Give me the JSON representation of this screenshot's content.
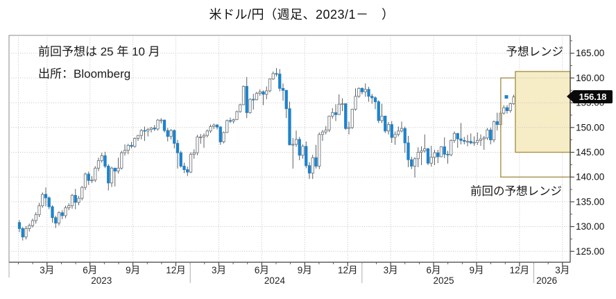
{
  "title": "米ドル/円（週足、2023/1－　）",
  "annotations": {
    "note_line1": "前回予想は 25 年 10 月",
    "note_line2": "出所：Bloomberg",
    "current_range_label": "予想レンジ",
    "previous_range_label": "前回の予想レンジ"
  },
  "last_price": "156.18",
  "colors": {
    "candle_down": "#1e82cb",
    "candle_up_fill": "#fdfdfd",
    "candle_up_stroke": "#73787d",
    "wick": "#4a4e52",
    "range_box_border": "#a8904c",
    "range_box_fill": "#f6ecc4",
    "gridline": "#c0c0c0",
    "axis": "#3f3f3f",
    "price_tag_bg": "#0a0a0a"
  },
  "chart_data": {
    "type": "candlestick",
    "title": "米ドル/円（週足、2023/1－　）",
    "frequency_label": "週足",
    "start_label": "2023/1",
    "last_close": 156.18,
    "y_axis": {
      "ylim": [
        122.8,
        168.6
      ],
      "major_ticks": [
        125,
        130,
        135,
        140,
        145,
        150,
        155,
        160,
        165
      ],
      "minor_step": 2.5,
      "tick_format": "0.00",
      "grid": true
    },
    "x_axis": {
      "month_ticks": [
        {
          "m": 2,
          "label": "3月"
        },
        {
          "m": 5,
          "label": "6月"
        },
        {
          "m": 8,
          "label": "9月"
        },
        {
          "m": 11,
          "label": "12月"
        },
        {
          "m": 14,
          "label": "3月"
        },
        {
          "m": 17,
          "label": "6月"
        },
        {
          "m": 20,
          "label": "9月"
        },
        {
          "m": 23,
          "label": "12月"
        },
        {
          "m": 26,
          "label": "3月"
        },
        {
          "m": 29,
          "label": "6月"
        },
        {
          "m": 32,
          "label": "9月"
        },
        {
          "m": 35,
          "label": "12月"
        },
        {
          "m": 38,
          "label": "3月"
        }
      ],
      "year_labels": [
        {
          "m": 5.8,
          "label": "2023"
        },
        {
          "m": 17.9,
          "label": "2024"
        },
        {
          "m": 29.7,
          "label": "2025"
        },
        {
          "m": 36.9,
          "label": "2026"
        }
      ],
      "year_dividers_m": [
        12,
        24,
        36
      ],
      "grid_months": [
        0,
        2,
        5,
        8,
        11,
        14,
        17,
        20,
        23,
        26,
        29,
        32,
        35,
        38
      ]
    },
    "forecast_ranges": [
      {
        "name": "previous",
        "label": "前回の予想レンジ",
        "price_low": 140.0,
        "price_high": 160.0,
        "start_m": 33.69,
        "filled": false
      },
      {
        "name": "current",
        "label": "予想レンジ",
        "price_low": 145.0,
        "price_high": 161.3,
        "start_m": 34.71,
        "filled": true
      }
    ],
    "weeks": [
      [
        130.8,
        131.3,
        128.9,
        129.6
      ],
      [
        129.6,
        129.9,
        127.2,
        127.9
      ],
      [
        127.9,
        130.1,
        127.4,
        129.6
      ],
      [
        129.6,
        130.6,
        129.0,
        130.2
      ],
      [
        130.2,
        131.6,
        129.8,
        131.2
      ],
      [
        131.2,
        132.9,
        130.6,
        132.4
      ],
      [
        132.4,
        134.8,
        131.9,
        134.2
      ],
      [
        134.2,
        136.9,
        133.8,
        136.5
      ],
      [
        136.5,
        137.9,
        134.1,
        135.8
      ],
      [
        135.8,
        136.1,
        133.5,
        134.0
      ],
      [
        134.0,
        134.3,
        130.8,
        131.8
      ],
      [
        131.8,
        132.2,
        129.7,
        130.7
      ],
      [
        130.7,
        133.1,
        130.2,
        132.8
      ],
      [
        132.8,
        133.3,
        131.5,
        132.2
      ],
      [
        132.2,
        134.2,
        131.7,
        133.8
      ],
      [
        133.8,
        134.7,
        133.3,
        134.2
      ],
      [
        134.2,
        136.6,
        133.6,
        136.3
      ],
      [
        136.3,
        137.6,
        133.5,
        134.9
      ],
      [
        134.9,
        136.2,
        134.3,
        135.7
      ],
      [
        135.7,
        138.2,
        135.3,
        137.9
      ],
      [
        137.9,
        140.9,
        137.4,
        140.6
      ],
      [
        140.6,
        141.1,
        138.4,
        139.3
      ],
      [
        139.3,
        140.2,
        138.8,
        139.4
      ],
      [
        139.4,
        142.2,
        139.0,
        141.8
      ],
      [
        141.8,
        143.9,
        141.2,
        143.3
      ],
      [
        143.3,
        144.9,
        142.9,
        144.3
      ],
      [
        144.3,
        145.1,
        141.8,
        142.2
      ],
      [
        142.2,
        142.6,
        137.3,
        138.8
      ],
      [
        138.8,
        142.1,
        138.0,
        141.8
      ],
      [
        141.8,
        141.9,
        138.1,
        141.2
      ],
      [
        141.2,
        143.9,
        140.7,
        141.8
      ],
      [
        141.8,
        145.3,
        141.5,
        144.9
      ],
      [
        144.9,
        146.6,
        144.3,
        145.4
      ],
      [
        145.4,
        146.7,
        144.6,
        146.4
      ],
      [
        146.4,
        147.1,
        145.8,
        146.2
      ],
      [
        146.2,
        148.0,
        145.9,
        147.8
      ],
      [
        147.8,
        148.5,
        147.3,
        148.4
      ],
      [
        148.4,
        149.7,
        147.6,
        149.4
      ],
      [
        149.4,
        150.2,
        147.3,
        149.3
      ],
      [
        149.3,
        149.9,
        148.2,
        149.6
      ],
      [
        149.6,
        150.1,
        149.0,
        149.9
      ],
      [
        149.9,
        150.5,
        149.3,
        149.7
      ],
      [
        149.7,
        151.7,
        149.4,
        151.5
      ],
      [
        151.5,
        151.9,
        150.8,
        151.5
      ],
      [
        151.5,
        151.6,
        149.0,
        149.4
      ],
      [
        149.4,
        149.9,
        147.2,
        148.2
      ],
      [
        148.2,
        149.7,
        147.6,
        149.4
      ],
      [
        149.4,
        149.6,
        145.8,
        146.8
      ],
      [
        146.8,
        147.5,
        141.7,
        144.9
      ],
      [
        144.9,
        145.3,
        141.9,
        142.2
      ],
      [
        142.2,
        142.9,
        140.8,
        141.5
      ],
      [
        141.5,
        142.1,
        140.2,
        141.0
      ],
      [
        141.0,
        145.0,
        140.8,
        144.6
      ],
      [
        144.6,
        145.6,
        143.7,
        144.9
      ],
      [
        144.9,
        148.5,
        144.4,
        148.1
      ],
      [
        148.1,
        148.7,
        146.7,
        148.1
      ],
      [
        148.1,
        148.8,
        145.9,
        148.4
      ],
      [
        148.4,
        149.6,
        148.0,
        149.3
      ],
      [
        149.3,
        150.6,
        148.9,
        150.2
      ],
      [
        150.2,
        150.8,
        149.7,
        150.5
      ],
      [
        150.5,
        150.7,
        149.6,
        150.1
      ],
      [
        150.1,
        150.3,
        146.5,
        147.1
      ],
      [
        147.1,
        149.2,
        146.8,
        149.0
      ],
      [
        149.0,
        151.6,
        148.9,
        151.4
      ],
      [
        151.4,
        152.0,
        150.9,
        151.3
      ],
      [
        151.3,
        151.8,
        150.8,
        151.6
      ],
      [
        151.6,
        153.4,
        151.5,
        153.2
      ],
      [
        153.2,
        154.8,
        153.0,
        154.6
      ],
      [
        154.6,
        158.5,
        154.5,
        158.3
      ],
      [
        158.3,
        160.2,
        151.9,
        153.0
      ],
      [
        153.0,
        155.9,
        152.8,
        155.7
      ],
      [
        155.7,
        156.8,
        153.6,
        155.6
      ],
      [
        155.6,
        157.2,
        155.5,
        156.9
      ],
      [
        156.9,
        157.7,
        156.4,
        157.2
      ],
      [
        157.2,
        157.5,
        154.5,
        156.7
      ],
      [
        156.7,
        158.3,
        155.7,
        157.4
      ],
      [
        157.4,
        159.9,
        157.1,
        159.8
      ],
      [
        159.8,
        161.3,
        159.6,
        160.9
      ],
      [
        160.9,
        162.0,
        160.3,
        160.8
      ],
      [
        160.8,
        161.8,
        157.3,
        157.9
      ],
      [
        157.9,
        158.9,
        155.4,
        157.5
      ],
      [
        157.5,
        157.6,
        151.9,
        153.8
      ],
      [
        153.8,
        155.2,
        146.4,
        146.5
      ],
      [
        146.5,
        147.9,
        141.7,
        146.6
      ],
      [
        146.6,
        149.4,
        146.1,
        147.6
      ],
      [
        147.6,
        148.1,
        143.4,
        144.4
      ],
      [
        144.4,
        146.6,
        143.7,
        146.2
      ],
      [
        146.2,
        147.2,
        141.8,
        142.3
      ],
      [
        142.3,
        143.0,
        139.6,
        140.8
      ],
      [
        140.8,
        144.5,
        139.6,
        143.9
      ],
      [
        143.9,
        146.5,
        141.7,
        142.2
      ],
      [
        142.2,
        149.0,
        141.6,
        148.6
      ],
      [
        148.6,
        149.5,
        147.3,
        149.1
      ],
      [
        149.1,
        150.3,
        148.6,
        149.5
      ],
      [
        149.5,
        152.4,
        149.1,
        152.3
      ],
      [
        152.3,
        153.9,
        151.8,
        153.0
      ],
      [
        153.0,
        154.7,
        151.3,
        152.6
      ],
      [
        152.6,
        156.7,
        152.6,
        154.7
      ],
      [
        154.7,
        155.9,
        153.3,
        154.8
      ],
      [
        154.8,
        154.9,
        149.5,
        149.8
      ],
      [
        149.8,
        151.2,
        148.6,
        150.0
      ],
      [
        150.0,
        153.8,
        149.7,
        153.7
      ],
      [
        153.7,
        157.9,
        153.4,
        156.3
      ],
      [
        156.3,
        158.1,
        156.0,
        157.9
      ],
      [
        157.9,
        158.1,
        156.7,
        157.2
      ],
      [
        157.2,
        158.9,
        156.2,
        157.7
      ],
      [
        157.7,
        158.2,
        155.2,
        156.3
      ],
      [
        156.3,
        156.8,
        154.8,
        156.0
      ],
      [
        156.0,
        156.3,
        153.7,
        155.2
      ],
      [
        155.2,
        155.5,
        150.9,
        151.4
      ],
      [
        151.4,
        154.8,
        150.9,
        152.3
      ],
      [
        152.3,
        152.4,
        148.9,
        149.3
      ],
      [
        149.3,
        151.1,
        148.6,
        150.6
      ],
      [
        150.6,
        151.3,
        146.9,
        148.0
      ],
      [
        148.0,
        149.2,
        146.5,
        148.6
      ],
      [
        148.6,
        150.2,
        148.2,
        149.3
      ],
      [
        149.3,
        151.2,
        149.0,
        149.8
      ],
      [
        149.8,
        150.2,
        144.9,
        146.9
      ],
      [
        146.9,
        148.3,
        142.0,
        143.5
      ],
      [
        143.5,
        144.1,
        141.6,
        142.2
      ],
      [
        142.2,
        144.0,
        139.9,
        143.7
      ],
      [
        143.7,
        146.0,
        142.0,
        145.0
      ],
      [
        145.0,
        146.2,
        142.4,
        145.3
      ],
      [
        145.3,
        148.6,
        144.9,
        145.7
      ],
      [
        145.7,
        145.9,
        142.4,
        142.8
      ],
      [
        142.8,
        146.3,
        142.1,
        144.0
      ],
      [
        144.0,
        145.5,
        142.4,
        144.9
      ],
      [
        144.9,
        145.5,
        142.8,
        144.1
      ],
      [
        144.1,
        146.2,
        144.0,
        146.1
      ],
      [
        146.1,
        148.0,
        143.8,
        144.6
      ],
      [
        144.6,
        145.3,
        142.7,
        144.5
      ],
      [
        144.5,
        147.6,
        144.2,
        147.4
      ],
      [
        147.4,
        149.2,
        146.9,
        148.8
      ],
      [
        148.8,
        148.9,
        145.9,
        147.7
      ],
      [
        147.7,
        150.9,
        146.6,
        147.4
      ],
      [
        147.4,
        148.1,
        146.6,
        147.2
      ],
      [
        147.2,
        148.5,
        146.2,
        147.2
      ],
      [
        147.2,
        148.8,
        146.6,
        146.9
      ],
      [
        146.9,
        148.2,
        146.3,
        147.0
      ],
      [
        147.0,
        149.0,
        146.5,
        147.4
      ],
      [
        147.4,
        148.6,
        146.3,
        147.7
      ],
      [
        147.7,
        148.3,
        145.5,
        147.9
      ],
      [
        147.9,
        149.9,
        147.5,
        149.5
      ],
      [
        149.5,
        150.0,
        146.6,
        147.5
      ],
      [
        147.5,
        151.4,
        147.0,
        151.2
      ],
      [
        151.2,
        153.0,
        149.4,
        150.6
      ],
      [
        150.6,
        153.3,
        150.3,
        152.9
      ],
      [
        152.9,
        154.5,
        152.6,
        154.0
      ],
      [
        154.0,
        154.5,
        152.8,
        153.4
      ],
      [
        153.4,
        155.0,
        153.0,
        154.8
      ],
      [
        154.8,
        156.6,
        154.6,
        156.18
      ]
    ]
  }
}
